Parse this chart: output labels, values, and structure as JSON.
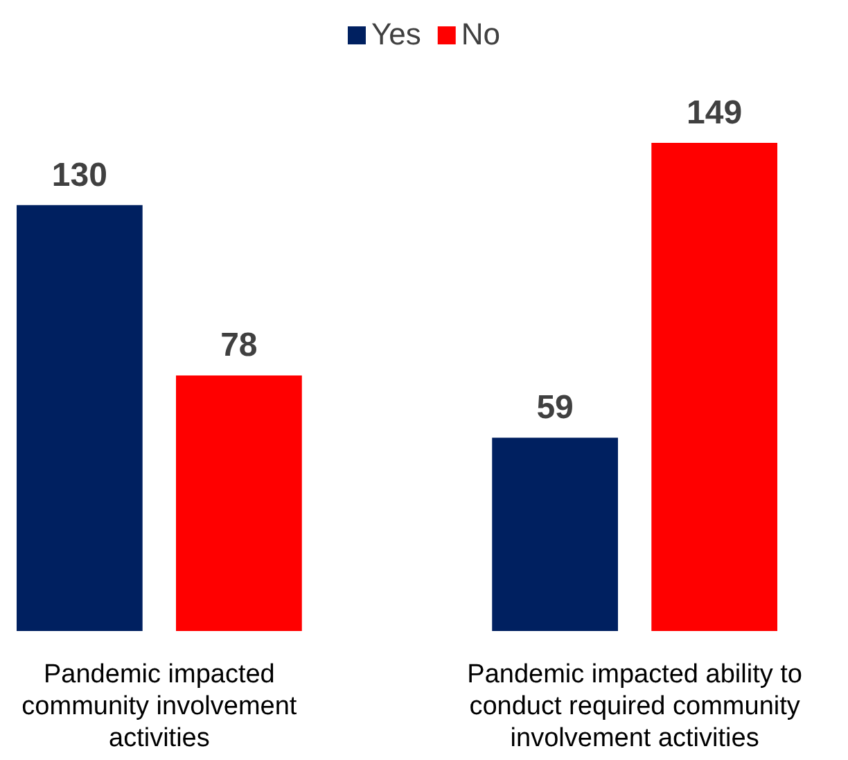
{
  "chart_data": {
    "type": "bar",
    "categories": [
      "Pandemic impacted community involvement activities",
      "Pandemic impacted ability to conduct required community involvement activities"
    ],
    "series": [
      {
        "name": "Yes",
        "color": "#002060",
        "values": [
          130,
          59
        ]
      },
      {
        "name": "No",
        "color": "#ff0000",
        "values": [
          78,
          149
        ]
      }
    ],
    "data_labels": true,
    "legend": "top"
  }
}
